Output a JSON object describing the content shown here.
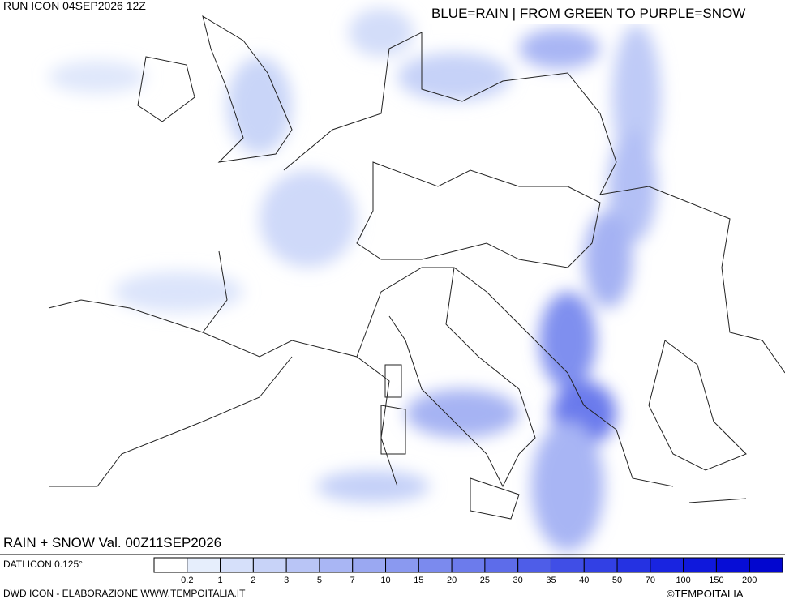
{
  "header": {
    "run": "RUN ICON 04SEP2026 12Z",
    "legend_note": "BLUE=RAIN | FROM GREEN TO PURPLE=SNOW",
    "validity": "RAIN + SNOW Val. 00Z11SEP2026"
  },
  "footer": {
    "resolution": "DATI ICON 0.125°",
    "credit": "DWD ICON - ELABORAZIONE WWW.TEMPOITALIA.IT",
    "copyright": "©TEMPOITALIA"
  },
  "scale": {
    "labels": [
      0.2,
      1,
      2,
      3,
      5,
      7,
      10,
      15,
      20,
      25,
      30,
      35,
      40,
      50,
      70,
      100,
      150,
      200
    ],
    "colors": [
      "#ffffff",
      "#e6eefc",
      "#d6e0fa",
      "#c8d3f8",
      "#b9c5f6",
      "#a9b6f4",
      "#9aa8f2",
      "#8a99f0",
      "#7b8aee",
      "#6c7bec",
      "#5d6cea",
      "#4e5de8",
      "#404ee6",
      "#3240e4",
      "#2532e2",
      "#1924e0",
      "#0f18dc",
      "#070dd6",
      "#0206cf"
    ]
  }
}
